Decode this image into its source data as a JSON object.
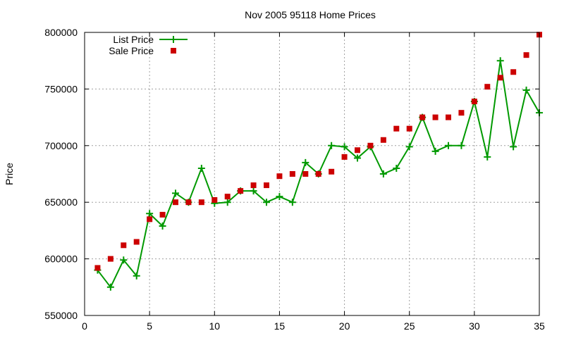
{
  "chart_data": {
    "type": "scatter",
    "title": "Nov 2005 95118 Home Prices",
    "xlabel": "",
    "ylabel": "Price",
    "xlim": [
      0,
      35
    ],
    "ylim": [
      550000,
      800000
    ],
    "xticks": [
      0,
      5,
      10,
      15,
      20,
      25,
      30,
      35
    ],
    "yticks": [
      550000,
      600000,
      650000,
      700000,
      750000,
      800000
    ],
    "grid": true,
    "legend_position": "top-left",
    "series": [
      {
        "name": "List Price",
        "style": "linespoints",
        "marker": "plus",
        "color": "#009900",
        "x": [
          1,
          2,
          3,
          4,
          5,
          6,
          7,
          8,
          9,
          10,
          11,
          12,
          13,
          14,
          15,
          16,
          17,
          18,
          19,
          20,
          21,
          22,
          23,
          24,
          25,
          26,
          27,
          28,
          29,
          30,
          31,
          32,
          33,
          34,
          35
        ],
        "y": [
          590000,
          575000,
          599000,
          585000,
          640000,
          629000,
          658000,
          650000,
          680000,
          649000,
          650000,
          660000,
          660000,
          650000,
          655000,
          650000,
          685000,
          675000,
          700000,
          699000,
          689000,
          699000,
          675000,
          680000,
          699000,
          725000,
          695000,
          700000,
          700000,
          739000,
          690000,
          775000,
          699000,
          749000,
          729000
        ]
      },
      {
        "name": "Sale Price",
        "style": "points",
        "marker": "square",
        "color": "#cc0000",
        "x": [
          1,
          2,
          3,
          4,
          5,
          6,
          7,
          8,
          9,
          10,
          11,
          12,
          13,
          14,
          15,
          16,
          17,
          18,
          19,
          20,
          21,
          22,
          23,
          24,
          25,
          26,
          27,
          28,
          29,
          30,
          31,
          32,
          33,
          34,
          35
        ],
        "y": [
          592000,
          600000,
          612000,
          615000,
          635000,
          639000,
          650000,
          650000,
          650000,
          652000,
          655000,
          660000,
          665000,
          665000,
          673000,
          675000,
          675000,
          675000,
          677000,
          690000,
          696000,
          700000,
          705000,
          715000,
          715000,
          725000,
          725000,
          725000,
          729000,
          739000,
          752000,
          760000,
          765000,
          780000,
          798000
        ]
      }
    ]
  }
}
